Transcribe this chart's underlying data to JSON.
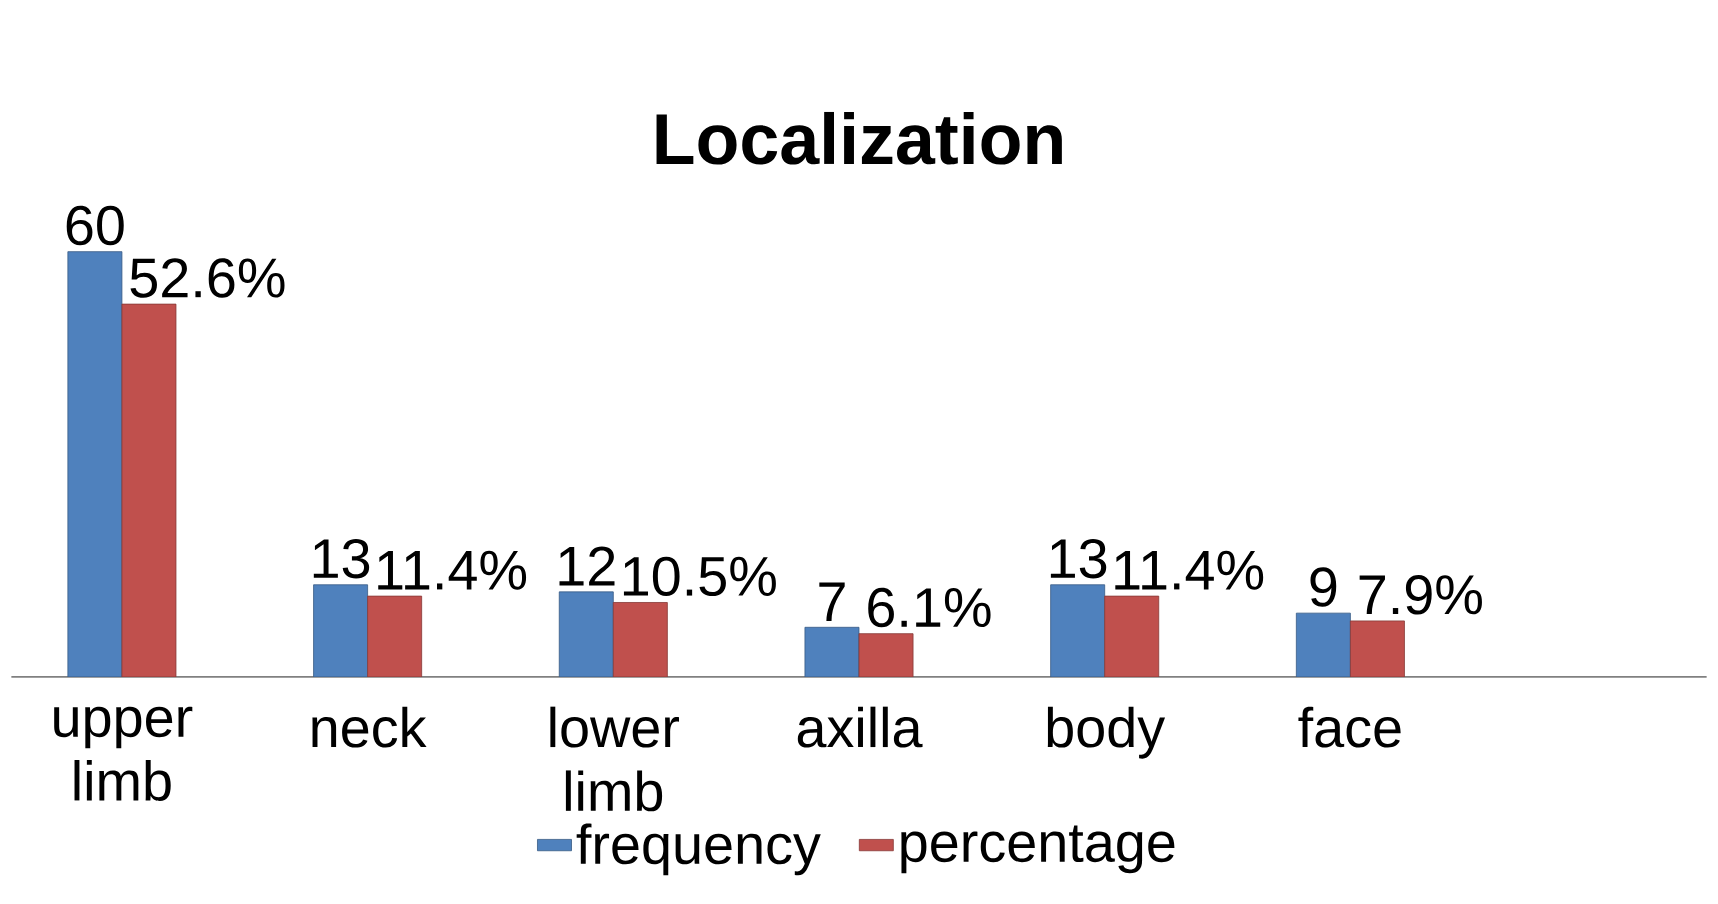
{
  "chart_data": {
    "type": "bar",
    "title": "Localization",
    "categories": [
      "upper limb",
      "neck",
      "lower limb",
      "axilla",
      "body",
      "face"
    ],
    "series": [
      {
        "name": "frequency",
        "color": "#4f81bd",
        "values": [
          60,
          13,
          12,
          7,
          13,
          9
        ],
        "value_labels": [
          "60",
          "13",
          "12",
          "7",
          "13",
          "9"
        ]
      },
      {
        "name": "percentage",
        "color": "#c0504d",
        "values": [
          52.6,
          11.4,
          10.5,
          6.1,
          11.4,
          7.9
        ],
        "value_labels": [
          "52.6%",
          "11.4%",
          "10.5%",
          "6.1%",
          "11.4%",
          "7.9%"
        ]
      }
    ],
    "legend": "bottom"
  }
}
